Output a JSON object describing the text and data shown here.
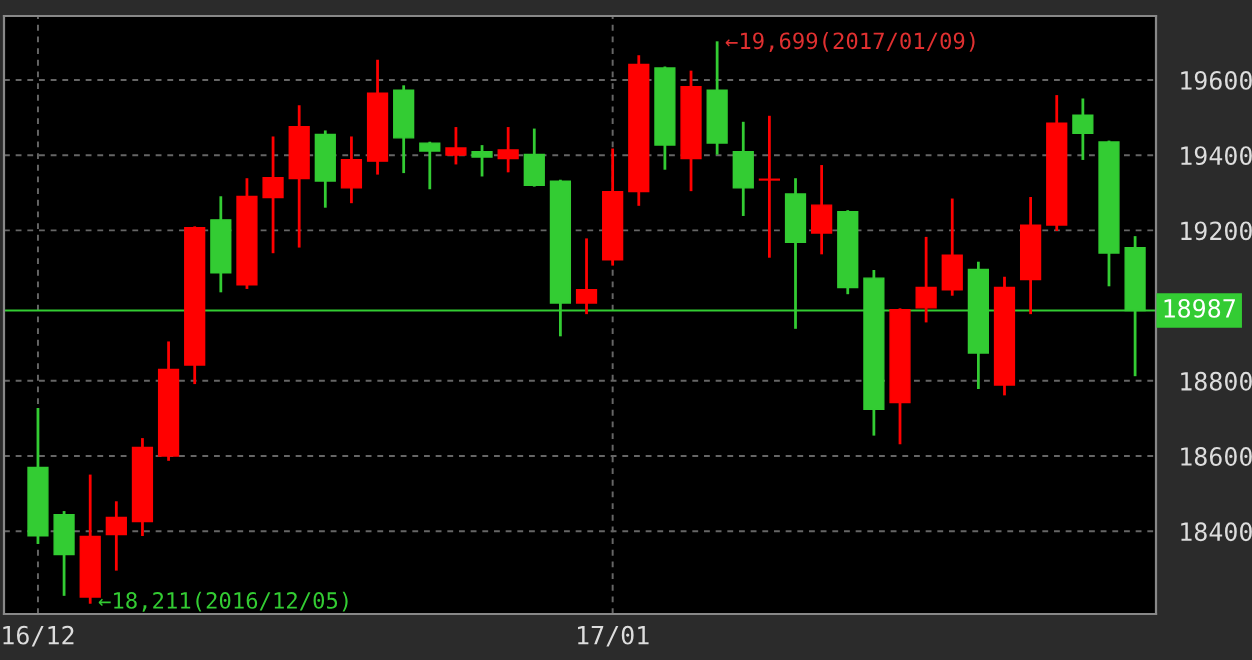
{
  "chart_data": {
    "type": "candlestick",
    "categories": [
      "16/12",
      null,
      null,
      null,
      null,
      null,
      null,
      null,
      null,
      null,
      null,
      null,
      null,
      null,
      null,
      null,
      null,
      null,
      null,
      null,
      null,
      null,
      "17/01",
      null,
      null,
      null,
      null,
      null,
      null,
      null,
      null,
      null,
      null,
      null,
      null,
      null,
      null,
      null,
      null,
      null,
      null,
      null,
      null
    ],
    "ohlc": [
      [
        18570,
        18724,
        18370,
        18388
      ],
      [
        18444,
        18450,
        18232,
        18338
      ],
      [
        18225,
        18547,
        18211,
        18386
      ],
      [
        18391,
        18476,
        18299,
        18437
      ],
      [
        18426,
        18644,
        18391,
        18623
      ],
      [
        18600,
        18901,
        18591,
        18830
      ],
      [
        18842,
        19207,
        18795,
        19207
      ],
      [
        19228,
        19287,
        19039,
        19087
      ],
      [
        19055,
        19335,
        19048,
        19290
      ],
      [
        19287,
        19446,
        19143,
        19340
      ],
      [
        19338,
        19529,
        19158,
        19476
      ],
      [
        19455,
        19462,
        19264,
        19331
      ],
      [
        19313,
        19446,
        19276,
        19388
      ],
      [
        19384,
        19650,
        19352,
        19565
      ],
      [
        19573,
        19582,
        19356,
        19446
      ],
      [
        19432,
        19432,
        19313,
        19411
      ],
      [
        19400,
        19471,
        19379,
        19419
      ],
      [
        19409,
        19423,
        19347,
        19395
      ],
      [
        19391,
        19471,
        19358,
        19414
      ],
      [
        19402,
        19467,
        19320,
        19320
      ],
      [
        19331,
        19331,
        18922,
        19007
      ],
      [
        19007,
        19175,
        18981,
        19042
      ],
      [
        19122,
        19414,
        19110,
        19303
      ],
      [
        19303,
        19662,
        19269,
        19641
      ],
      [
        19632,
        19632,
        19365,
        19427
      ],
      [
        19391,
        19621,
        19308,
        19582
      ],
      [
        19573,
        19699,
        19405,
        19432
      ],
      [
        19409,
        19485,
        19242,
        19313
      ],
      [
        19334,
        19501,
        19131,
        19336
      ],
      [
        19297,
        19335,
        18942,
        19168
      ],
      [
        19193,
        19370,
        19140,
        19267
      ],
      [
        19250,
        19250,
        19034,
        19048
      ],
      [
        19073,
        19091,
        18658,
        18724
      ],
      [
        18742,
        18989,
        18635,
        18989
      ],
      [
        18994,
        19179,
        18959,
        19048
      ],
      [
        19042,
        19281,
        19030,
        19134
      ],
      [
        19096,
        19113,
        18782,
        18874
      ],
      [
        18789,
        19073,
        18765,
        19048
      ],
      [
        19069,
        19285,
        18981,
        19214
      ],
      [
        19214,
        19556,
        19202,
        19485
      ],
      [
        19506,
        19547,
        19391,
        19458
      ],
      [
        19435,
        19435,
        19055,
        19140
      ],
      [
        19154,
        19181,
        18816,
        18987
      ]
    ],
    "colors": [
      "#33cc33",
      "#33cc33",
      "#ff0000",
      "#ff0000",
      "#ff0000",
      "#ff0000",
      "#ff0000",
      "#33cc33",
      "#ff0000",
      "#ff0000",
      "#ff0000",
      "#33cc33",
      "#ff0000",
      "#ff0000",
      "#33cc33",
      "#33cc33",
      "#ff0000",
      "#33cc33",
      "#ff0000",
      "#33cc33",
      "#33cc33",
      "#ff0000",
      "#ff0000",
      "#ff0000",
      "#33cc33",
      "#ff0000",
      "#33cc33",
      "#33cc33",
      "#ff0000",
      "#33cc33",
      "#ff0000",
      "#33cc33",
      "#33cc33",
      "#ff0000",
      "#ff0000",
      "#ff0000",
      "#33cc33",
      "#ff0000",
      "#ff0000",
      "#ff0000",
      "#33cc33",
      "#33cc33",
      "#33cc33"
    ],
    "ylim": [
      18180,
      19770
    ],
    "yticks": [
      18400,
      18600,
      18800,
      19200,
      19400,
      19600
    ],
    "grid": true,
    "ref_lines": [
      {
        "axis": "y",
        "value": 18987,
        "label": "18987",
        "color": "#33cc33"
      }
    ],
    "annotations": [
      "←19,699(2017/01/09)",
      "←18,211(2016/12/05)"
    ]
  }
}
